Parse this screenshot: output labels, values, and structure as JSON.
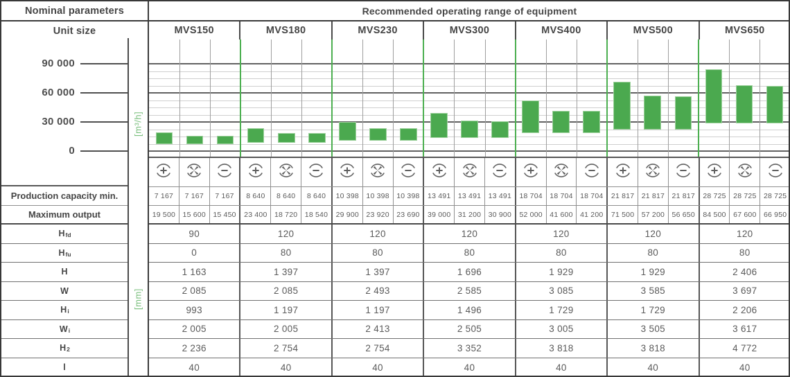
{
  "header": {
    "nominal_parameters": "Nominal parameters",
    "unit_size": "Unit size",
    "recommended": "Recommended operating range of equipment"
  },
  "units": [
    "MVS150",
    "MVS180",
    "MVS230",
    "MVS300",
    "MVS400",
    "MVS500",
    "MVS650"
  ],
  "axis": {
    "unit_label": "[m³/h]",
    "ticks": [
      {
        "label": "90 000",
        "value": 90000
      },
      {
        "label": "60 000",
        "value": 60000
      },
      {
        "label": "30 000",
        "value": 30000
      },
      {
        "label": "0",
        "value": 0
      }
    ]
  },
  "icon_row": {
    "pattern": [
      "supply-plus-icon",
      "fan-cross-icon",
      "exhaust-minus-icon"
    ]
  },
  "capacity": {
    "min_label": "Production capacity min.",
    "max_label": "Maximum output",
    "min_values": [
      "7 167",
      "7 167",
      "7 167",
      "8 640",
      "8 640",
      "8 640",
      "10 398",
      "10 398",
      "10 398",
      "13 491",
      "13 491",
      "13 491",
      "18 704",
      "18 704",
      "18 704",
      "21 817",
      "21 817",
      "21 817",
      "28 725",
      "28 725",
      "28 725"
    ],
    "max_values": [
      "19 500",
      "15 600",
      "15 450",
      "23 400",
      "18 720",
      "18 540",
      "29 900",
      "23 920",
      "23 690",
      "39 000",
      "31 200",
      "30 900",
      "52 000",
      "41 600",
      "41 200",
      "71 500",
      "57 200",
      "56 650",
      "84 500",
      "67 600",
      "66 950"
    ]
  },
  "dimensions": {
    "unit_label": "[mm]",
    "rows": [
      {
        "label": "H",
        "sub": "fd",
        "values": [
          "90",
          "120",
          "120",
          "120",
          "120",
          "120",
          "120"
        ]
      },
      {
        "label": "H",
        "sub": "fu",
        "values": [
          "0",
          "80",
          "80",
          "80",
          "80",
          "80",
          "80"
        ]
      },
      {
        "label": "H",
        "sub": "",
        "values": [
          "1 163",
          "1 397",
          "1 397",
          "1 696",
          "1 929",
          "1 929",
          "2 406"
        ]
      },
      {
        "label": "W",
        "sub": "",
        "values": [
          "2 085",
          "2 085",
          "2 493",
          "2 585",
          "3 085",
          "3 585",
          "3 697"
        ]
      },
      {
        "label": "H",
        "sub": "i",
        "values": [
          "993",
          "1 197",
          "1 197",
          "1 496",
          "1 729",
          "1 729",
          "2 206"
        ]
      },
      {
        "label": "W",
        "sub": "i",
        "values": [
          "2 005",
          "2 005",
          "2 413",
          "2 505",
          "3 005",
          "3 505",
          "3 617"
        ]
      },
      {
        "label": "H",
        "sub": "2",
        "values": [
          "2 236",
          "2 754",
          "2 754",
          "3 352",
          "3 818",
          "3 818",
          "4 772"
        ]
      },
      {
        "label": "l",
        "sub": "",
        "values": [
          "40",
          "40",
          "40",
          "40",
          "40",
          "40",
          "40"
        ]
      }
    ]
  },
  "chart_data": {
    "type": "bar",
    "title": "Recommended operating range of equipment",
    "ylabel": "[m³/h]",
    "ylim": [
      0,
      114000
    ],
    "yticks": [
      0,
      30000,
      60000,
      90000
    ],
    "minor_step": 7500,
    "grid": "on",
    "categories": [
      "MVS150",
      "MVS180",
      "MVS230",
      "MVS300",
      "MVS400",
      "MVS500",
      "MVS650"
    ],
    "modes_per_category": [
      "supply-plus",
      "fan-cross",
      "exhaust-minus"
    ],
    "series": [
      {
        "unit": "MVS150",
        "ranges": [
          [
            7167,
            19500
          ],
          [
            7167,
            15600
          ],
          [
            7167,
            15450
          ]
        ]
      },
      {
        "unit": "MVS180",
        "ranges": [
          [
            8640,
            23400
          ],
          [
            8640,
            18720
          ],
          [
            8640,
            18540
          ]
        ]
      },
      {
        "unit": "MVS230",
        "ranges": [
          [
            10398,
            29900
          ],
          [
            10398,
            23920
          ],
          [
            10398,
            23690
          ]
        ]
      },
      {
        "unit": "MVS300",
        "ranges": [
          [
            13491,
            39000
          ],
          [
            13491,
            31200
          ],
          [
            13491,
            30900
          ]
        ]
      },
      {
        "unit": "MVS400",
        "ranges": [
          [
            18704,
            52000
          ],
          [
            18704,
            41600
          ],
          [
            18704,
            41200
          ]
        ]
      },
      {
        "unit": "MVS500",
        "ranges": [
          [
            21817,
            71500
          ],
          [
            21817,
            57200
          ],
          [
            21817,
            56650
          ]
        ]
      },
      {
        "unit": "MVS650",
        "ranges": [
          [
            28725,
            84500
          ],
          [
            28725,
            67600
          ],
          [
            28725,
            66950
          ]
        ]
      }
    ]
  },
  "colors": {
    "bar_green": "#4ba94f",
    "divider_green": "#4caf50",
    "unit_label_green": "#7abf7d"
  }
}
